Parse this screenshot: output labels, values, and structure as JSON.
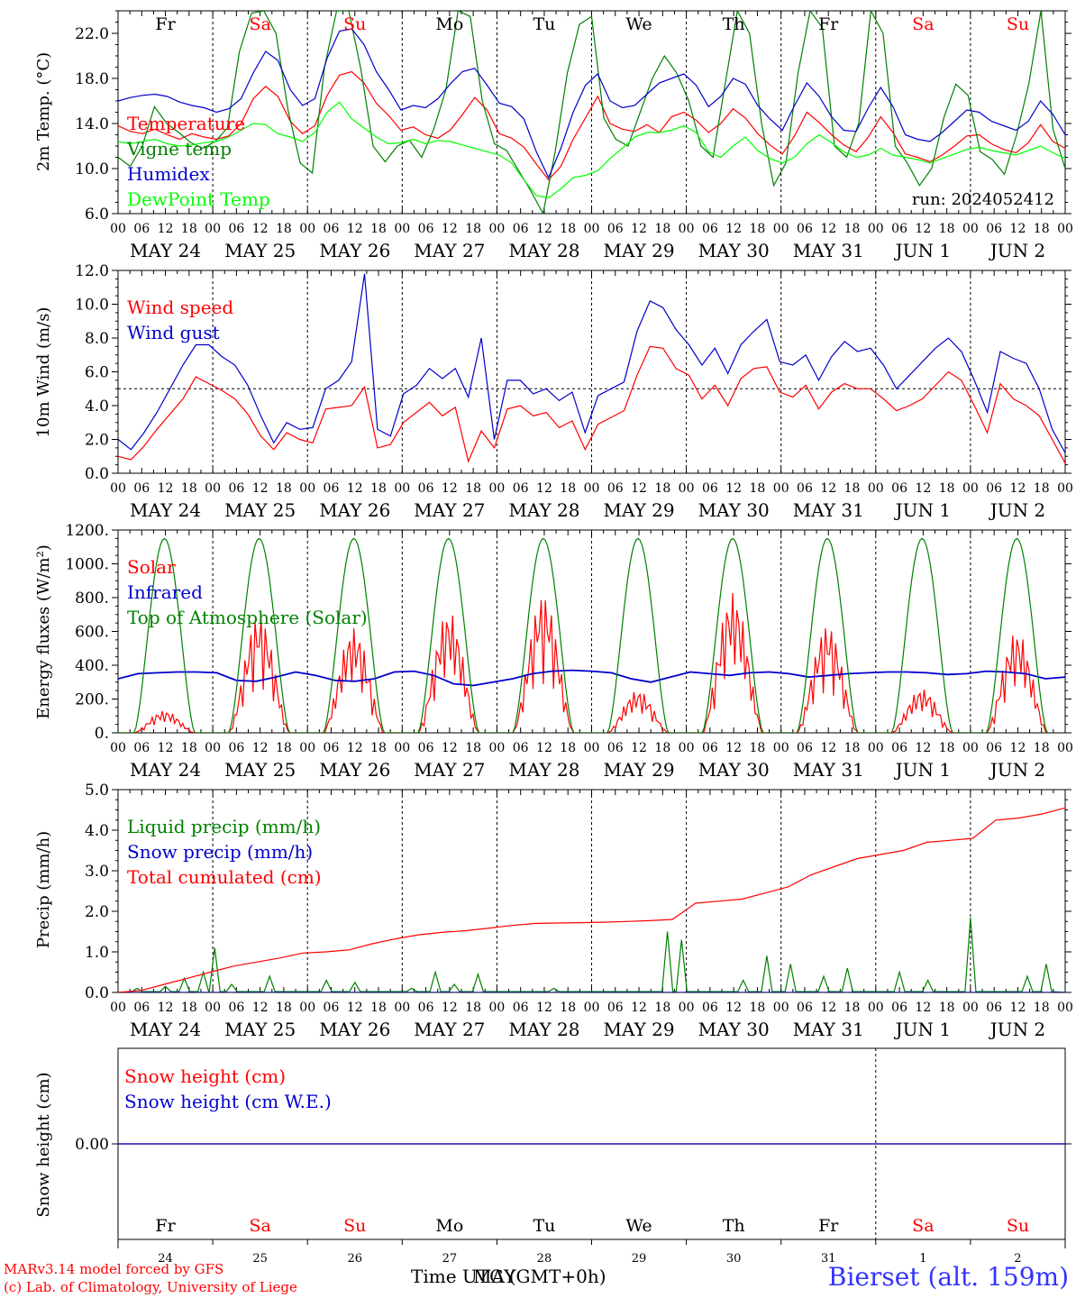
{
  "chart_data": [
    {
      "type": "line",
      "ylabel": "2m Temp. (°C)",
      "ylim": [
        6,
        24
      ],
      "yticks": [
        "22.0",
        "18.0",
        "14.0",
        "10.0",
        "6.0"
      ],
      "yticks_values": [
        22,
        18,
        14,
        10,
        6
      ],
      "annotation": "run: 2024052412",
      "series": [
        {
          "name": "Temperature",
          "color": "#ff0000",
          "values": [
            13.8,
            13.3,
            13.1,
            13.5,
            13.0,
            12.6,
            13.1,
            12.8,
            12.6,
            12.9,
            14.0,
            16.2,
            17.3,
            16.4,
            14.2,
            13.1,
            13.8,
            16.5,
            18.3,
            18.6,
            17.6,
            15.8,
            14.7,
            13.4,
            13.7,
            13.0,
            12.7,
            13.4,
            14.8,
            16.3,
            15.2,
            13.1,
            12.7,
            11.9,
            10.4,
            9.0,
            10.2,
            12.6,
            14.5,
            16.4,
            14.0,
            13.5,
            13.3,
            13.9,
            13.2,
            14.6,
            15.0,
            14.3,
            13.2,
            14.0,
            15.3,
            14.5,
            13.1,
            12.1,
            11.3,
            12.9,
            15.0,
            14.1,
            13.0,
            12.1,
            11.5,
            12.8,
            14.6,
            13.2,
            11.3,
            11.0,
            10.6,
            11.2,
            12.0,
            12.9,
            13.0,
            12.2,
            11.7,
            11.4,
            12.3,
            13.9,
            12.4,
            11.8
          ]
        },
        {
          "name": "Vigne temp",
          "color": "#008000",
          "values": [
            11.0,
            10.2,
            12.0,
            15.5,
            14.0,
            13.2,
            12.3,
            11.8,
            12.4,
            13.6,
            20.4,
            23.8,
            24.0,
            22.0,
            15.2,
            10.5,
            9.6,
            19.0,
            24.0,
            24.0,
            18.8,
            12.0,
            10.6,
            12.0,
            12.5,
            11.0,
            13.5,
            17.0,
            24.0,
            23.5,
            16.0,
            12.2,
            11.6,
            9.8,
            8.0,
            6.0,
            11.5,
            18.5,
            22.8,
            23.5,
            14.5,
            12.6,
            12.0,
            15.0,
            18.0,
            20.0,
            18.5,
            16.0,
            12.0,
            11.0,
            17.5,
            24.0,
            22.0,
            14.0,
            8.5,
            10.5,
            18.5,
            24.0,
            22.5,
            12.0,
            11.0,
            14.0,
            24.0,
            22.0,
            12.0,
            10.5,
            8.5,
            10.0,
            14.5,
            17.5,
            16.5,
            11.5,
            10.8,
            9.5,
            13.0,
            17.5,
            24.0,
            13.5,
            10.0
          ]
        },
        {
          "name": "Humidex",
          "color": "#0000cc",
          "values": [
            16.0,
            16.3,
            16.5,
            16.6,
            16.4,
            15.9,
            15.6,
            15.4,
            15.0,
            15.3,
            16.2,
            18.5,
            20.4,
            19.6,
            17.0,
            15.6,
            16.2,
            19.8,
            22.2,
            22.4,
            21.0,
            18.6,
            17.0,
            15.2,
            15.6,
            15.4,
            16.2,
            17.5,
            18.6,
            18.9,
            17.4,
            15.8,
            15.5,
            14.4,
            11.5,
            9.2,
            11.8,
            15.0,
            17.4,
            18.4,
            16.0,
            15.4,
            15.6,
            16.6,
            17.6,
            18.0,
            18.4,
            17.4,
            15.5,
            16.4,
            18.0,
            17.5,
            15.6,
            14.4,
            13.4,
            15.6,
            17.6,
            16.4,
            14.6,
            13.4,
            13.3,
            15.4,
            17.2,
            15.5,
            13.0,
            12.6,
            12.4,
            13.2,
            14.2,
            15.2,
            15.0,
            14.2,
            13.8,
            13.4,
            14.2,
            16.0,
            14.8,
            13.0
          ]
        },
        {
          "name": "DewPoint Temp",
          "color": "#00ff00",
          "values": [
            12.4,
            12.2,
            12.4,
            12.6,
            12.2,
            12.0,
            12.1,
            12.3,
            12.4,
            12.8,
            13.4,
            14.0,
            13.9,
            13.1,
            12.8,
            12.4,
            13.2,
            15.0,
            15.9,
            14.4,
            13.6,
            12.8,
            12.2,
            12.3,
            12.6,
            12.2,
            12.5,
            12.4,
            12.1,
            11.8,
            11.5,
            11.2,
            10.5,
            9.0,
            7.6,
            7.4,
            8.2,
            9.2,
            9.4,
            9.8,
            10.9,
            11.8,
            12.8,
            13.2,
            13.2,
            13.4,
            13.8,
            13.2,
            11.5,
            11.0,
            12.0,
            12.8,
            11.6,
            10.9,
            10.5,
            11.0,
            12.2,
            13.0,
            12.3,
            11.5,
            11.0,
            11.2,
            11.8,
            11.2,
            11.0,
            10.8,
            10.5,
            10.9,
            11.3,
            11.7,
            11.9,
            11.6,
            11.4,
            11.2,
            11.6,
            12.0,
            11.4,
            10.9
          ]
        }
      ]
    },
    {
      "type": "line",
      "ylabel": "10m Wind (m/s)",
      "ylim": [
        0,
        12
      ],
      "yticks": [
        "12.0",
        "10.0",
        "8.0",
        "6.0",
        "4.0",
        "2.0",
        "0.0"
      ],
      "yticks_values": [
        12,
        10,
        8,
        6,
        4,
        2,
        0
      ],
      "reference_line": 5.0,
      "series": [
        {
          "name": "Wind speed",
          "color": "#ff0000",
          "values": [
            1.0,
            0.8,
            1.6,
            2.6,
            3.5,
            4.4,
            5.7,
            5.3,
            4.9,
            4.4,
            3.5,
            2.2,
            1.4,
            2.4,
            2.0,
            1.8,
            3.8,
            3.9,
            4.0,
            5.1,
            1.5,
            1.7,
            3.0,
            3.6,
            4.2,
            3.4,
            3.9,
            0.7,
            2.5,
            1.5,
            3.8,
            4.0,
            3.4,
            3.6,
            2.7,
            3.1,
            1.4,
            2.9,
            3.3,
            3.7,
            5.8,
            7.5,
            7.4,
            6.2,
            5.8,
            4.4,
            5.2,
            4.0,
            5.6,
            6.2,
            6.3,
            4.8,
            4.5,
            5.2,
            3.8,
            4.8,
            5.3,
            5.0,
            5.0,
            4.4,
            3.7,
            4.0,
            4.4,
            5.2,
            6.0,
            5.5,
            4.0,
            2.4,
            5.3,
            4.4,
            4.0,
            3.4,
            2.0,
            0.6
          ]
        },
        {
          "name": "Wind gust",
          "color": "#0000cc",
          "values": [
            2.0,
            1.4,
            2.4,
            3.6,
            5.0,
            6.4,
            7.6,
            7.6,
            6.9,
            6.4,
            5.2,
            3.4,
            1.8,
            3.0,
            2.6,
            2.7,
            5.0,
            5.5,
            6.6,
            11.8,
            2.6,
            2.2,
            4.7,
            5.2,
            6.2,
            5.6,
            6.2,
            4.5,
            8.0,
            2.0,
            5.5,
            5.5,
            4.7,
            5.0,
            4.3,
            4.8,
            2.4,
            4.6,
            5.0,
            5.4,
            8.4,
            10.2,
            9.8,
            8.5,
            7.6,
            6.4,
            7.4,
            5.9,
            7.6,
            8.4,
            9.1,
            6.6,
            6.4,
            7.0,
            5.5,
            6.9,
            7.8,
            7.2,
            7.4,
            6.4,
            5.0,
            5.8,
            6.6,
            7.4,
            8.0,
            7.2,
            5.5,
            3.6,
            7.2,
            6.8,
            6.5,
            5.0,
            2.6,
            1.2
          ]
        }
      ]
    },
    {
      "type": "line",
      "ylabel": "Energy fluxes (W/m²)",
      "ylim": [
        0,
        1200
      ],
      "yticks": [
        "1200.",
        "1000.",
        "800.",
        "600.",
        "400.",
        "200.",
        "0."
      ],
      "yticks_values": [
        1200,
        1000,
        800,
        600,
        400,
        200,
        0
      ],
      "series": [
        {
          "name": "Solar",
          "color": "#ff0000",
          "daily_peaks": [
            130,
            700,
            620,
            720,
            820,
            250,
            830,
            640,
            260,
            600
          ]
        },
        {
          "name": "Infrared",
          "color": "#0000cc",
          "values": [
            320,
            350,
            355,
            360,
            360,
            355,
            310,
            305,
            330,
            360,
            340,
            310,
            305,
            320,
            360,
            365,
            340,
            290,
            280,
            300,
            320,
            350,
            365,
            370,
            365,
            355,
            320,
            300,
            330,
            360,
            350,
            340,
            355,
            360,
            350,
            330,
            340,
            350,
            355,
            360,
            360,
            355,
            345,
            350,
            365,
            360,
            350,
            320,
            330
          ]
        },
        {
          "name": "Top of Atmosphere (Solar)",
          "color": "#008000",
          "daily_peaks": [
            1150,
            1150,
            1150,
            1150,
            1150,
            1150,
            1150,
            1150,
            1150,
            1150
          ]
        }
      ]
    },
    {
      "type": "line",
      "ylabel": "Precip (mm/h)",
      "ylim": [
        0,
        5
      ],
      "yticks": [
        "5.0",
        "4.0",
        "3.0",
        "2.0",
        "1.0",
        "0.0"
      ],
      "yticks_values": [
        5,
        4,
        3,
        2,
        1,
        0
      ],
      "series": [
        {
          "name": "Liquid precip (mm/h)",
          "color": "#008000",
          "spikes": [
            [
              0.2,
              0.1
            ],
            [
              0.5,
              0.15
            ],
            [
              0.7,
              0.35
            ],
            [
              0.9,
              0.5
            ],
            [
              1.02,
              1.1
            ],
            [
              1.2,
              0.2
            ],
            [
              1.6,
              0.4
            ],
            [
              2.2,
              0.3
            ],
            [
              2.5,
              0.25
            ],
            [
              3.1,
              0.1
            ],
            [
              3.35,
              0.5
            ],
            [
              3.55,
              0.2
            ],
            [
              3.8,
              0.45
            ],
            [
              4.6,
              0.1
            ],
            [
              5.8,
              1.5
            ],
            [
              5.95,
              1.3
            ],
            [
              6.6,
              0.3
            ],
            [
              6.85,
              0.9
            ],
            [
              7.1,
              0.7
            ],
            [
              7.45,
              0.4
            ],
            [
              7.7,
              0.6
            ],
            [
              8.25,
              0.5
            ],
            [
              8.55,
              0.3
            ],
            [
              9.0,
              1.85
            ],
            [
              9.6,
              0.4
            ],
            [
              9.8,
              0.7
            ]
          ]
        },
        {
          "name": "Snow precip (mm/h)",
          "color": "#0000cc",
          "values": [
            0
          ]
        },
        {
          "name": "Total cumulated (cm)",
          "color": "#ff0000",
          "values": [
            0.0,
            0.05,
            0.2,
            0.35,
            0.5,
            0.65,
            0.75,
            0.85,
            0.97,
            1.0,
            1.05,
            1.2,
            1.32,
            1.42,
            1.48,
            1.52,
            1.58,
            1.65,
            1.7,
            1.71,
            1.72,
            1.73,
            1.75,
            1.77,
            1.8,
            2.2,
            2.25,
            2.3,
            2.45,
            2.6,
            2.9,
            3.1,
            3.3,
            3.4,
            3.5,
            3.7,
            3.75,
            3.8,
            4.25,
            4.3,
            4.4,
            4.55
          ]
        }
      ]
    },
    {
      "type": "line",
      "ylabel": "Snow height (cm)",
      "yticks": [
        "0.00"
      ],
      "yticks_values": [
        0
      ],
      "series": [
        {
          "name": "Snow height (cm)",
          "color": "#ff0000",
          "values": [
            0,
            0
          ]
        },
        {
          "name": "Snow height (cm W.E.)",
          "color": "#0000cc",
          "values": [
            0,
            0
          ]
        }
      ]
    }
  ],
  "x_axis": {
    "hour_labels": [
      "00",
      "06",
      "12",
      "18"
    ],
    "final_hour_label": "00",
    "date_labels": [
      "MAY 24",
      "MAY 25",
      "MAY 26",
      "MAY 27",
      "MAY 28",
      "MAY 29",
      "MAY 30",
      "MAY 31",
      "JUN  1",
      "JUN  2"
    ],
    "weekday_labels": [
      "Fr",
      "Sa",
      "Su",
      "Mo",
      "Tu",
      "We",
      "Th",
      "Fr",
      "Sa",
      "Su"
    ],
    "weekday_colors": [
      "#000000",
      "#ff0000",
      "#ff0000",
      "#000000",
      "#000000",
      "#000000",
      "#000000",
      "#000000",
      "#ff0000",
      "#ff0000"
    ],
    "day_numbers": [
      "24",
      "25",
      "26",
      "27",
      "28",
      "29",
      "30",
      "31",
      "1",
      "2"
    ]
  },
  "footer": {
    "xlabel": "Time UTC (GMT+0h)",
    "xlabel_overlap": "MAY",
    "credit_line1": "MARv3.14 model forced by GFS",
    "credit_line2": "(c) Lab. of Climatology, University of Liege",
    "station": "Bierset (alt. 159m)"
  }
}
